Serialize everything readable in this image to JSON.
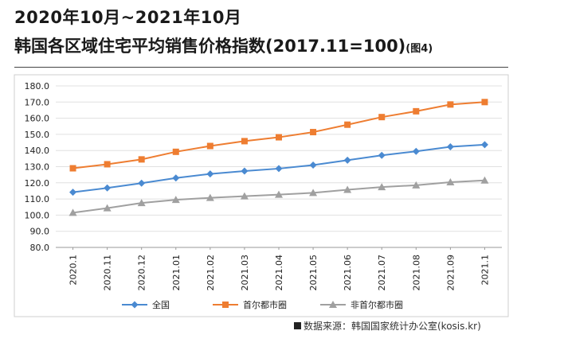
{
  "title": {
    "line1": "2020年10月~2021年10月",
    "line2": "韩国各区域住宅平均销售价格指数(2017.11=100)",
    "note": "(图4)"
  },
  "source": "数据来源：韩国国家统计办公室(kosis.kr)",
  "chart_data": {
    "type": "line",
    "categories": [
      "2020.1",
      "2020.11",
      "2020.12",
      "2021.01",
      "2021.02",
      "2021.03",
      "2021.04",
      "2021.05",
      "2021.06",
      "2021.07",
      "2021.08",
      "2021.09",
      "2021.1"
    ],
    "ylim": [
      80,
      180
    ],
    "yticks": [
      "180.0",
      "170.0",
      "160.0",
      "150.0",
      "140.0",
      "130.0",
      "120.0",
      "110.0",
      "100.0",
      "90.0",
      "80.0"
    ],
    "grid": true,
    "legend_position": "bottom",
    "series": [
      {
        "name": "全国",
        "marker": "diamond",
        "color": "#4a8ad1",
        "values": [
          114.2,
          116.8,
          119.8,
          123.0,
          125.5,
          127.3,
          128.8,
          131.0,
          134.0,
          137.0,
          139.5,
          142.3,
          143.6
        ]
      },
      {
        "name": "首尔都市圈",
        "marker": "square",
        "color": "#ee7d31",
        "values": [
          129.0,
          131.5,
          134.5,
          139.2,
          142.8,
          145.8,
          148.2,
          151.4,
          156.0,
          160.7,
          164.3,
          168.5,
          170.0
        ]
      },
      {
        "name": "非首尔都市圈",
        "marker": "triangle",
        "color": "#a0a0a0",
        "values": [
          101.5,
          104.3,
          107.5,
          109.5,
          110.7,
          111.7,
          112.7,
          113.8,
          115.7,
          117.4,
          118.5,
          120.4,
          121.5
        ]
      }
    ]
  }
}
